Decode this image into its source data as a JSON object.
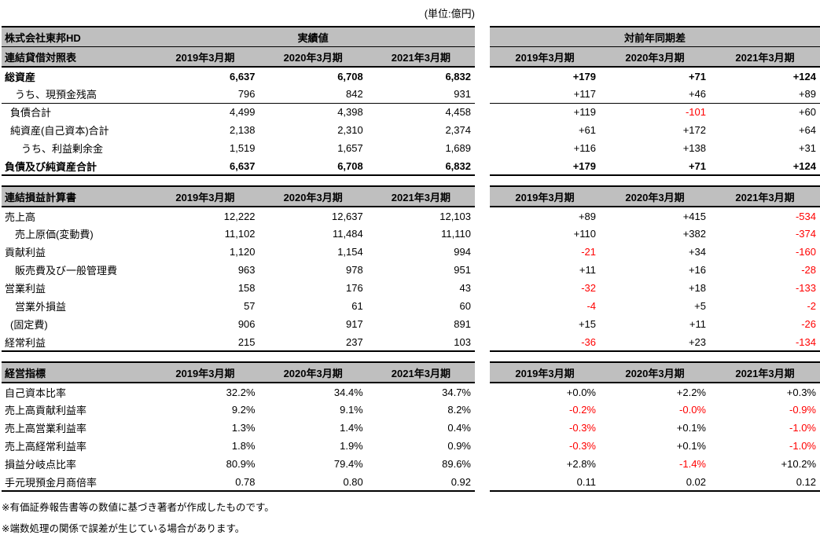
{
  "unit_label": "(単位:億円)",
  "company": "株式会社東邦HD",
  "actuals_group_label": "実績値",
  "diff_group_label": "対前年同期差",
  "year_columns": [
    "2019年3月期",
    "2020年3月期",
    "2021年3月期"
  ],
  "colors": {
    "header_background": "#bfbfbf",
    "negative_value": "#ff0000",
    "border": "#000000"
  },
  "sections": [
    {
      "title": "連結貸借対照表",
      "rows": [
        {
          "label": "総資産",
          "indent": 0,
          "bold": true,
          "separator_below": false,
          "actual": [
            "6,637",
            "6,708",
            "6,832"
          ],
          "diff": [
            "+179",
            "+71",
            "+124"
          ]
        },
        {
          "label": "うち、現預金残高",
          "indent": 13,
          "bold": false,
          "separator_below": true,
          "actual": [
            "796",
            "842",
            "931"
          ],
          "diff": [
            "+117",
            "+46",
            "+89"
          ]
        },
        {
          "label": "負債合計",
          "indent": 7,
          "bold": false,
          "separator_below": false,
          "actual": [
            "4,499",
            "4,398",
            "4,458"
          ],
          "diff": [
            "+119",
            "-101",
            "+60"
          ]
        },
        {
          "label": "純資産(自己資本)合計",
          "indent": 7,
          "bold": false,
          "separator_below": false,
          "actual": [
            "2,138",
            "2,310",
            "2,374"
          ],
          "diff": [
            "+61",
            "+172",
            "+64"
          ]
        },
        {
          "label": "うち、利益剰余金",
          "indent": 21,
          "bold": false,
          "separator_below": false,
          "actual": [
            "1,519",
            "1,657",
            "1,689"
          ],
          "diff": [
            "+116",
            "+138",
            "+31"
          ]
        },
        {
          "label": "負債及び純資産合計",
          "indent": 0,
          "bold": true,
          "separator_below": false,
          "actual": [
            "6,637",
            "6,708",
            "6,832"
          ],
          "diff": [
            "+179",
            "+71",
            "+124"
          ]
        }
      ]
    },
    {
      "title": "連結損益計算書",
      "rows": [
        {
          "label": "売上高",
          "indent": 0,
          "bold": false,
          "separator_below": false,
          "actual": [
            "12,222",
            "12,637",
            "12,103"
          ],
          "diff": [
            "+89",
            "+415",
            "-534"
          ]
        },
        {
          "label": "売上原価(変動費)",
          "indent": 13,
          "bold": false,
          "separator_below": false,
          "actual": [
            "11,102",
            "11,484",
            "11,110"
          ],
          "diff": [
            "+110",
            "+382",
            "-374"
          ]
        },
        {
          "label": "貢献利益",
          "indent": 0,
          "bold": false,
          "separator_below": false,
          "actual": [
            "1,120",
            "1,154",
            "994"
          ],
          "diff": [
            "-21",
            "+34",
            "-160"
          ]
        },
        {
          "label": "販売費及び一般管理費",
          "indent": 13,
          "bold": false,
          "separator_below": false,
          "actual": [
            "963",
            "978",
            "951"
          ],
          "diff": [
            "+11",
            "+16",
            "-28"
          ]
        },
        {
          "label": "営業利益",
          "indent": 0,
          "bold": false,
          "separator_below": false,
          "actual": [
            "158",
            "176",
            "43"
          ],
          "diff": [
            "-32",
            "+18",
            "-133"
          ]
        },
        {
          "label": "営業外損益",
          "indent": 13,
          "bold": false,
          "separator_below": false,
          "actual": [
            "57",
            "61",
            "60"
          ],
          "diff": [
            "-4",
            "+5",
            "-2"
          ]
        },
        {
          "label": "(固定費)",
          "indent": 7,
          "bold": false,
          "separator_below": false,
          "actual": [
            "906",
            "917",
            "891"
          ],
          "diff": [
            "+15",
            "+11",
            "-26"
          ]
        },
        {
          "label": "経常利益",
          "indent": 0,
          "bold": false,
          "separator_below": false,
          "actual": [
            "215",
            "237",
            "103"
          ],
          "diff": [
            "-36",
            "+23",
            "-134"
          ]
        }
      ]
    },
    {
      "title": "経営指標",
      "rows": [
        {
          "label": "自己資本比率",
          "indent": 0,
          "bold": false,
          "separator_below": false,
          "actual": [
            "32.2%",
            "34.4%",
            "34.7%"
          ],
          "diff": [
            "+0.0%",
            "+2.2%",
            "+0.3%"
          ]
        },
        {
          "label": "売上高貢献利益率",
          "indent": 0,
          "bold": false,
          "separator_below": false,
          "actual": [
            "9.2%",
            "9.1%",
            "8.2%"
          ],
          "diff": [
            "-0.2%",
            "-0.0%",
            "-0.9%"
          ]
        },
        {
          "label": "売上高営業利益率",
          "indent": 0,
          "bold": false,
          "separator_below": false,
          "actual": [
            "1.3%",
            "1.4%",
            "0.4%"
          ],
          "diff": [
            "-0.3%",
            "+0.1%",
            "-1.0%"
          ]
        },
        {
          "label": "売上高経常利益率",
          "indent": 0,
          "bold": false,
          "separator_below": false,
          "actual": [
            "1.8%",
            "1.9%",
            "0.9%"
          ],
          "diff": [
            "-0.3%",
            "+0.1%",
            "-1.0%"
          ]
        },
        {
          "label": "損益分岐点比率",
          "indent": 0,
          "bold": false,
          "separator_below": false,
          "actual": [
            "80.9%",
            "79.4%",
            "89.6%"
          ],
          "diff": [
            "+2.8%",
            "-1.4%",
            "+10.2%"
          ]
        },
        {
          "label": "手元現預金月商倍率",
          "indent": 0,
          "bold": false,
          "separator_below": false,
          "actual": [
            "0.78",
            "0.80",
            "0.92"
          ],
          "diff": [
            "0.11",
            "0.02",
            "0.12"
          ]
        }
      ]
    }
  ],
  "footnotes": [
    "※有価証券報告書等の数値に基づき著者が作成したものです。",
    "※端数処理の関係で誤差が生じている場合があります。"
  ]
}
